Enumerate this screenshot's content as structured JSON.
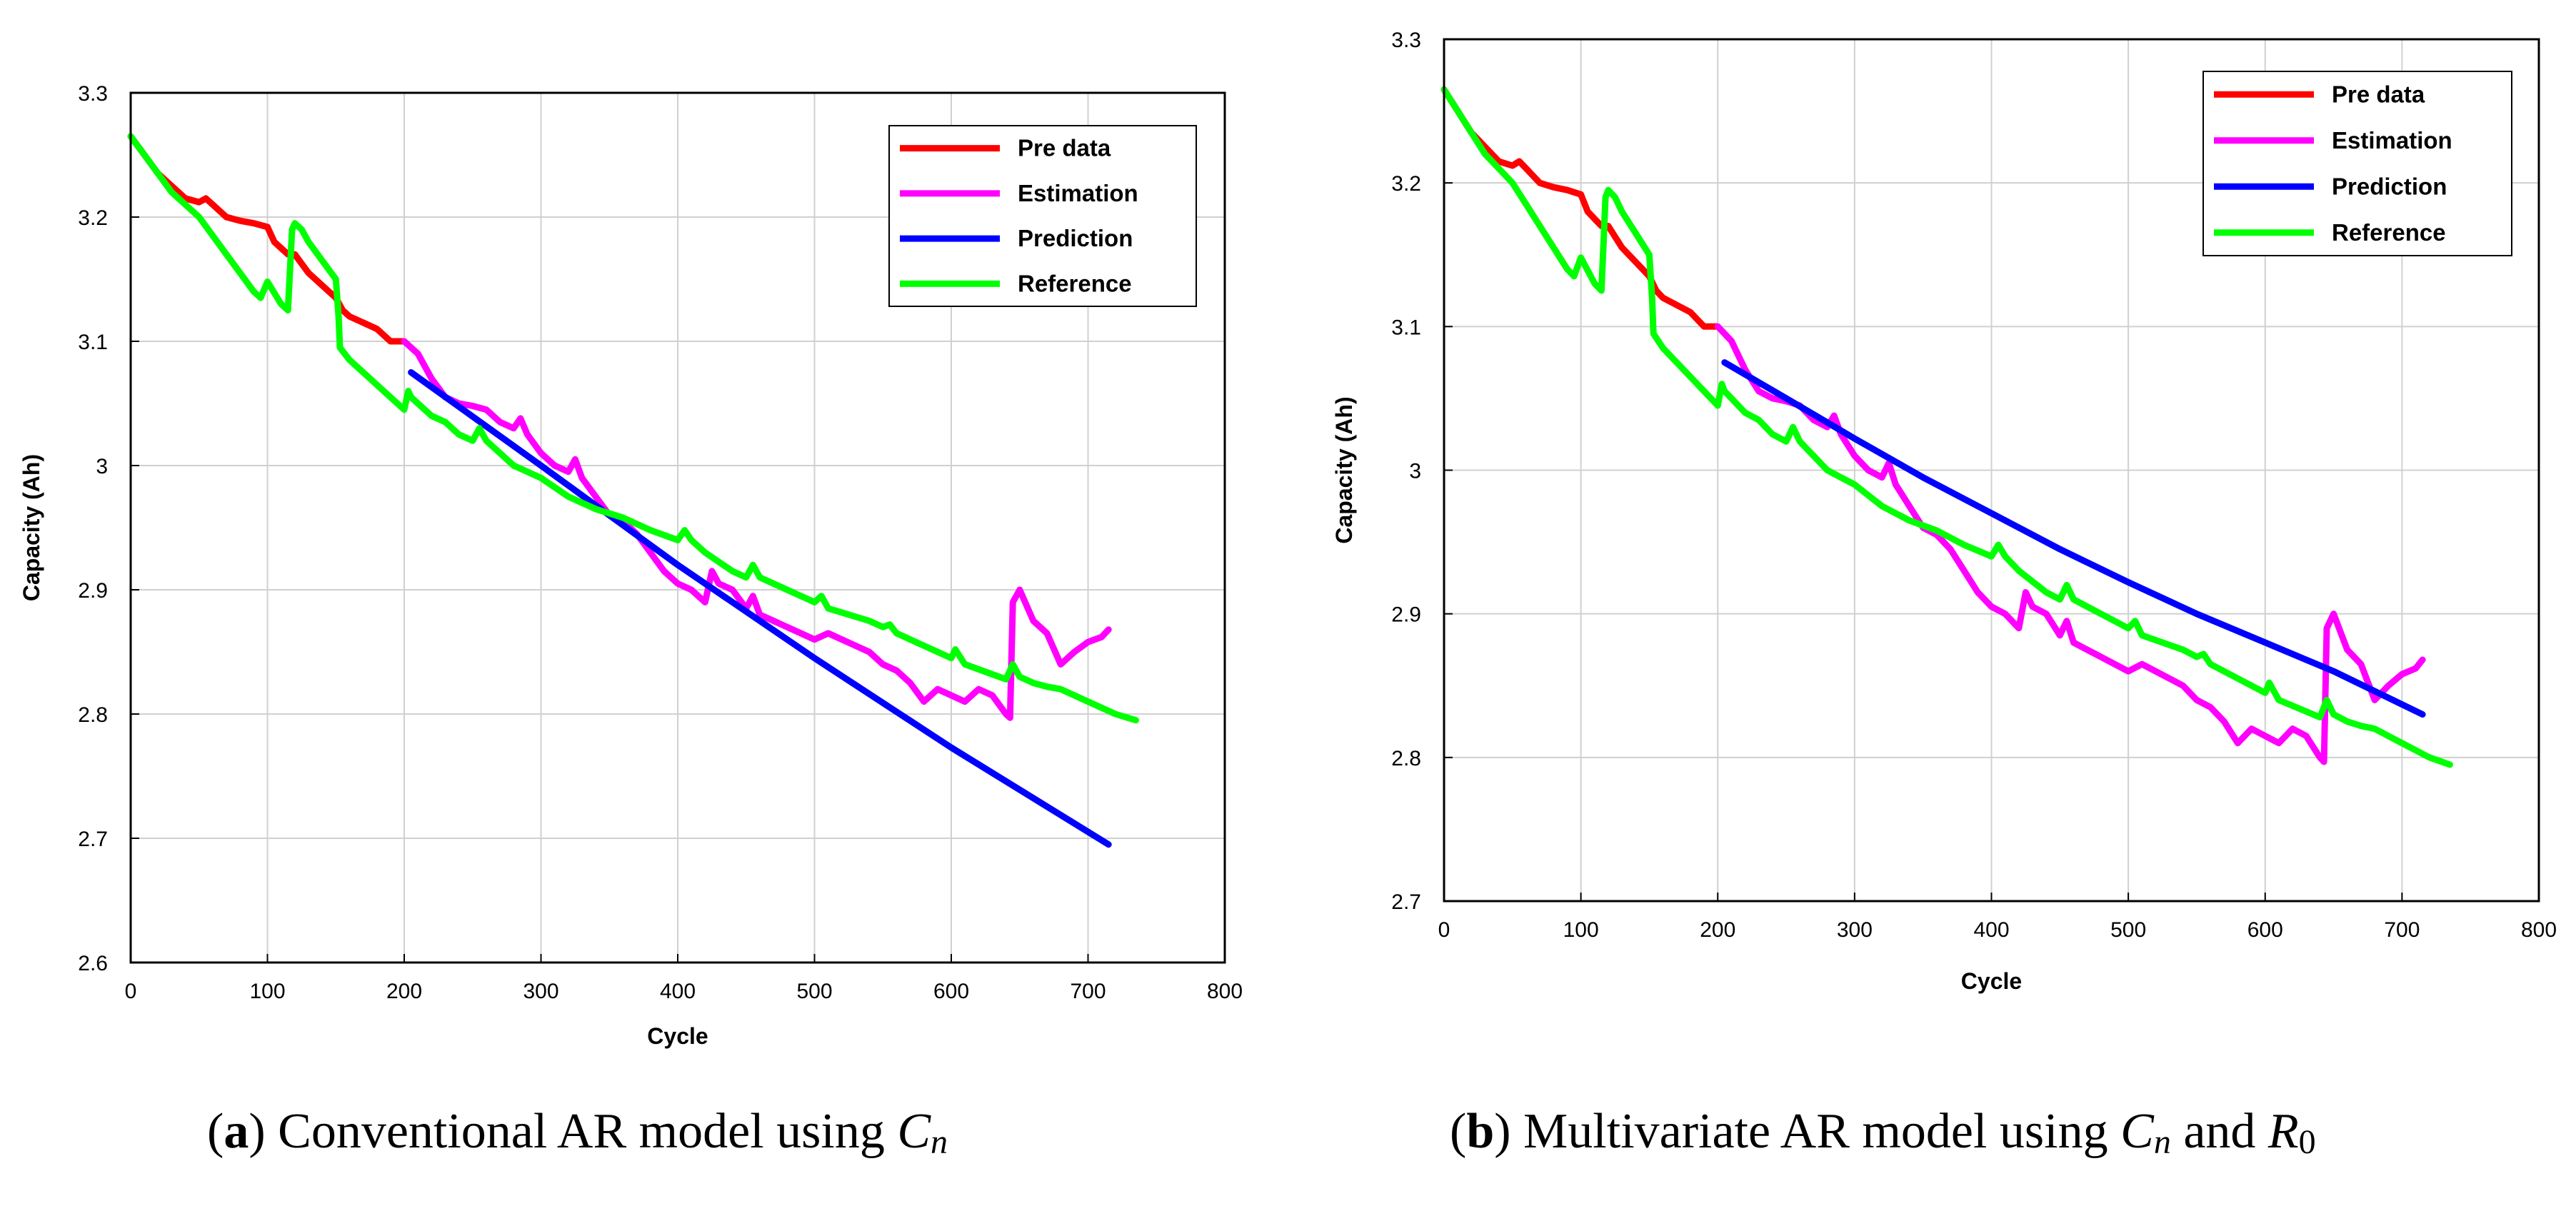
{
  "chart_data": [
    {
      "id": "a",
      "type": "line",
      "title": "",
      "xlabel": "Cycle",
      "ylabel": "Capacity (Ah)",
      "xlim": [
        0,
        800
      ],
      "ylim": [
        2.6,
        3.3
      ],
      "xticks": [
        "0",
        "100",
        "200",
        "300",
        "400",
        "500",
        "600",
        "700",
        "800"
      ],
      "yticks": [
        "2.6",
        "2.7",
        "2.8",
        "2.9",
        "3",
        "3.1",
        "3.2",
        "3.3"
      ],
      "grid": true,
      "legend_position": "top-right",
      "series": [
        {
          "name": "Pre data",
          "color": "#ff0000",
          "x": [
            0,
            10,
            20,
            30,
            40,
            50,
            55,
            60,
            70,
            80,
            90,
            100,
            105,
            110,
            115,
            120,
            130,
            140,
            145,
            150,
            155,
            160,
            170,
            180,
            190,
            200
          ],
          "y": [
            3.265,
            3.25,
            3.235,
            3.225,
            3.215,
            3.212,
            3.215,
            3.21,
            3.2,
            3.197,
            3.195,
            3.192,
            3.18,
            3.175,
            3.17,
            3.17,
            3.155,
            3.145,
            3.14,
            3.135,
            3.125,
            3.12,
            3.115,
            3.11,
            3.1,
            3.1
          ]
        },
        {
          "name": "Estimation",
          "color": "#ff00ff",
          "x": [
            200,
            210,
            220,
            230,
            240,
            250,
            260,
            270,
            280,
            285,
            290,
            300,
            310,
            320,
            325,
            330,
            340,
            350,
            360,
            370,
            380,
            390,
            400,
            410,
            420,
            425,
            430,
            440,
            450,
            455,
            460,
            470,
            480,
            490,
            500,
            510,
            520,
            530,
            540,
            550,
            560,
            570,
            580,
            590,
            600,
            610,
            620,
            630,
            640,
            643,
            645,
            650,
            660,
            670,
            680,
            690,
            700,
            710,
            715
          ],
          "y": [
            3.1,
            3.09,
            3.07,
            3.055,
            3.05,
            3.048,
            3.045,
            3.035,
            3.03,
            3.038,
            3.025,
            3.01,
            3.0,
            2.995,
            3.005,
            2.99,
            2.975,
            2.96,
            2.955,
            2.945,
            2.93,
            2.915,
            2.905,
            2.9,
            2.89,
            2.915,
            2.905,
            2.9,
            2.885,
            2.895,
            2.88,
            2.875,
            2.87,
            2.865,
            2.86,
            2.865,
            2.86,
            2.855,
            2.85,
            2.84,
            2.835,
            2.825,
            2.81,
            2.82,
            2.815,
            2.81,
            2.82,
            2.815,
            2.8,
            2.797,
            2.89,
            2.9,
            2.875,
            2.865,
            2.84,
            2.85,
            2.858,
            2.862,
            2.868
          ]
        },
        {
          "name": "Prediction",
          "color": "#0000ff",
          "x": [
            205,
            300,
            400,
            500,
            600,
            715
          ],
          "y": [
            3.075,
            3.0,
            2.92,
            2.845,
            2.773,
            2.695
          ]
        },
        {
          "name": "Reference",
          "color": "#00ff00",
          "x": [
            0,
            10,
            20,
            30,
            40,
            50,
            60,
            70,
            80,
            90,
            95,
            100,
            110,
            115,
            118,
            120,
            125,
            130,
            140,
            150,
            152,
            153,
            160,
            170,
            180,
            190,
            200,
            203,
            205,
            210,
            220,
            230,
            240,
            250,
            255,
            260,
            270,
            280,
            290,
            300,
            320,
            340,
            360,
            380,
            400,
            405,
            410,
            420,
            440,
            450,
            455,
            460,
            480,
            500,
            505,
            510,
            540,
            550,
            555,
            560,
            580,
            600,
            603,
            610,
            640,
            645,
            650,
            660,
            670,
            680,
            690,
            700,
            720,
            735
          ],
          "y": [
            3.265,
            3.25,
            3.235,
            3.22,
            3.21,
            3.2,
            3.185,
            3.17,
            3.155,
            3.14,
            3.135,
            3.148,
            3.13,
            3.125,
            3.19,
            3.195,
            3.19,
            3.18,
            3.165,
            3.15,
            3.12,
            3.095,
            3.085,
            3.075,
            3.065,
            3.055,
            3.045,
            3.06,
            3.055,
            3.05,
            3.04,
            3.035,
            3.025,
            3.02,
            3.03,
            3.02,
            3.01,
            3.0,
            2.995,
            2.99,
            2.975,
            2.965,
            2.958,
            2.948,
            2.94,
            2.948,
            2.94,
            2.93,
            2.915,
            2.91,
            2.92,
            2.91,
            2.9,
            2.89,
            2.895,
            2.885,
            2.875,
            2.87,
            2.872,
            2.865,
            2.855,
            2.845,
            2.852,
            2.84,
            2.828,
            2.84,
            2.83,
            2.825,
            2.822,
            2.82,
            2.815,
            2.81,
            2.8,
            2.795
          ]
        }
      ]
    },
    {
      "id": "b",
      "type": "line",
      "title": "",
      "xlabel": "Cycle",
      "ylabel": "Capacity (Ah)",
      "xlim": [
        0,
        800
      ],
      "ylim": [
        2.7,
        3.3
      ],
      "xticks": [
        "0",
        "100",
        "200",
        "300",
        "400",
        "500",
        "600",
        "700",
        "800"
      ],
      "yticks": [
        "2.7",
        "2.8",
        "2.9",
        "3",
        "3.1",
        "3.2",
        "3.3"
      ],
      "grid": true,
      "legend_position": "top-right",
      "series": [
        {
          "name": "Pre data",
          "color": "#ff0000",
          "x": [
            0,
            10,
            20,
            30,
            40,
            50,
            55,
            60,
            70,
            80,
            90,
            100,
            105,
            110,
            115,
            120,
            130,
            140,
            145,
            150,
            155,
            160,
            170,
            180,
            190,
            200
          ],
          "y": [
            3.265,
            3.25,
            3.235,
            3.225,
            3.215,
            3.212,
            3.215,
            3.21,
            3.2,
            3.197,
            3.195,
            3.192,
            3.18,
            3.175,
            3.17,
            3.17,
            3.155,
            3.145,
            3.14,
            3.135,
            3.125,
            3.12,
            3.115,
            3.11,
            3.1,
            3.1
          ]
        },
        {
          "name": "Estimation",
          "color": "#ff00ff",
          "x": [
            200,
            210,
            220,
            230,
            240,
            250,
            260,
            270,
            280,
            285,
            290,
            300,
            310,
            320,
            325,
            330,
            340,
            350,
            360,
            370,
            380,
            390,
            400,
            410,
            420,
            425,
            430,
            440,
            450,
            455,
            460,
            470,
            480,
            490,
            500,
            510,
            520,
            530,
            540,
            550,
            560,
            570,
            580,
            590,
            600,
            610,
            620,
            630,
            640,
            643,
            645,
            650,
            660,
            670,
            680,
            690,
            700,
            710,
            715
          ],
          "y": [
            3.1,
            3.09,
            3.07,
            3.055,
            3.05,
            3.048,
            3.045,
            3.035,
            3.03,
            3.038,
            3.025,
            3.01,
            3.0,
            2.995,
            3.005,
            2.99,
            2.975,
            2.96,
            2.955,
            2.945,
            2.93,
            2.915,
            2.905,
            2.9,
            2.89,
            2.915,
            2.905,
            2.9,
            2.885,
            2.895,
            2.88,
            2.875,
            2.87,
            2.865,
            2.86,
            2.865,
            2.86,
            2.855,
            2.85,
            2.84,
            2.835,
            2.825,
            2.81,
            2.82,
            2.815,
            2.81,
            2.82,
            2.815,
            2.8,
            2.797,
            2.89,
            2.9,
            2.875,
            2.865,
            2.84,
            2.85,
            2.858,
            2.862,
            2.868
          ]
        },
        {
          "name": "Prediction",
          "color": "#0000ff",
          "x": [
            205,
            250,
            300,
            350,
            400,
            450,
            500,
            550,
            600,
            650,
            715
          ],
          "y": [
            3.075,
            3.05,
            3.022,
            2.995,
            2.97,
            2.945,
            2.922,
            2.9,
            2.88,
            2.86,
            2.83
          ]
        },
        {
          "name": "Reference",
          "color": "#00ff00",
          "x": [
            0,
            10,
            20,
            30,
            40,
            50,
            60,
            70,
            80,
            90,
            95,
            100,
            110,
            115,
            118,
            120,
            125,
            130,
            140,
            150,
            152,
            153,
            160,
            170,
            180,
            190,
            200,
            203,
            205,
            210,
            220,
            230,
            240,
            250,
            255,
            260,
            270,
            280,
            290,
            300,
            320,
            340,
            360,
            380,
            400,
            405,
            410,
            420,
            440,
            450,
            455,
            460,
            480,
            500,
            505,
            510,
            540,
            550,
            555,
            560,
            580,
            600,
            603,
            610,
            640,
            645,
            650,
            660,
            670,
            680,
            690,
            700,
            720,
            735
          ],
          "y": [
            3.265,
            3.25,
            3.235,
            3.22,
            3.21,
            3.2,
            3.185,
            3.17,
            3.155,
            3.14,
            3.135,
            3.148,
            3.13,
            3.125,
            3.19,
            3.195,
            3.19,
            3.18,
            3.165,
            3.15,
            3.12,
            3.095,
            3.085,
            3.075,
            3.065,
            3.055,
            3.045,
            3.06,
            3.055,
            3.05,
            3.04,
            3.035,
            3.025,
            3.02,
            3.03,
            3.02,
            3.01,
            3.0,
            2.995,
            2.99,
            2.975,
            2.965,
            2.958,
            2.948,
            2.94,
            2.948,
            2.94,
            2.93,
            2.915,
            2.91,
            2.92,
            2.91,
            2.9,
            2.89,
            2.895,
            2.885,
            2.875,
            2.87,
            2.872,
            2.865,
            2.855,
            2.845,
            2.852,
            2.84,
            2.828,
            2.84,
            2.83,
            2.825,
            2.822,
            2.82,
            2.815,
            2.81,
            2.8,
            2.795
          ]
        }
      ]
    }
  ],
  "captions": {
    "a": {
      "open": "(",
      "letter": "a",
      "text": ") Conventional AR model using ",
      "var1": "C",
      "sub1": "n"
    },
    "b": {
      "open": "(",
      "letter": "b",
      "text": ") Multivariate AR model using ",
      "var1": "C",
      "sub1": "n",
      "mid": " and ",
      "var2": "R",
      "sub2": "0"
    }
  }
}
